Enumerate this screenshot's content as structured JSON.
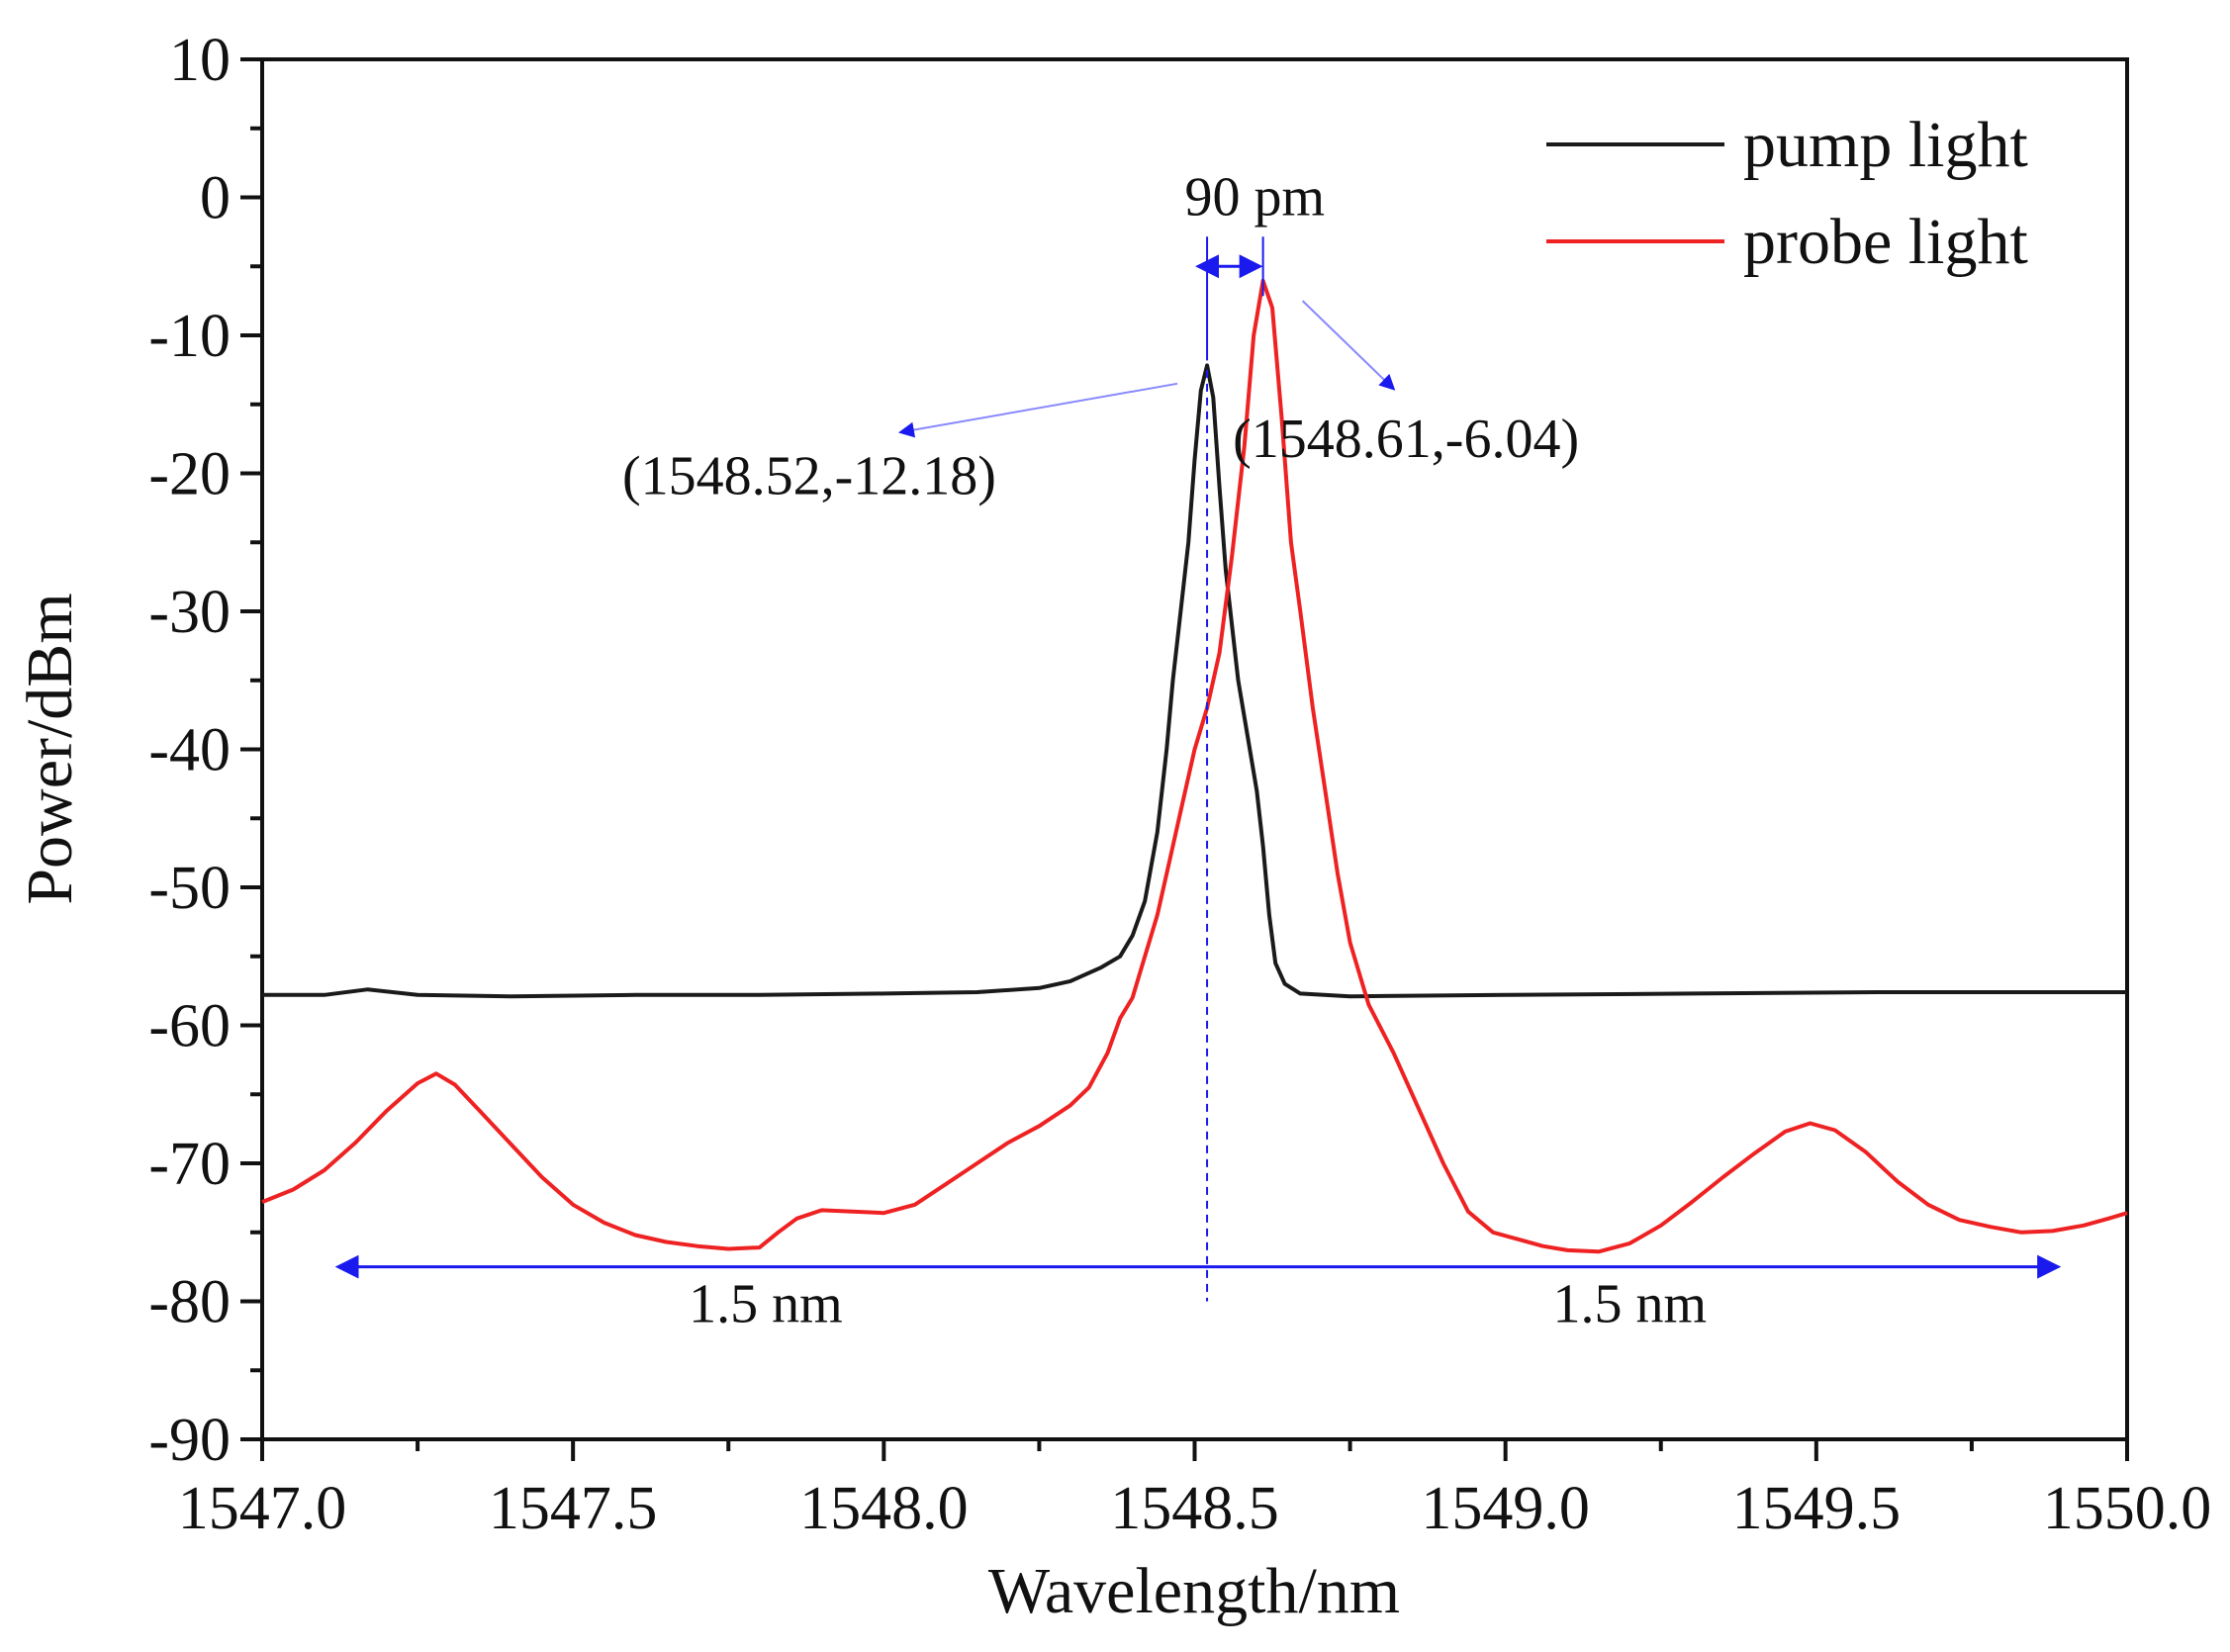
{
  "chart_data": {
    "type": "line",
    "title": "",
    "xlabel": "Wavelength/nm",
    "ylabel": "Power/dBm",
    "xlim": [
      1547.0,
      1550.0
    ],
    "ylim": [
      -90,
      10
    ],
    "xticks": [
      1547.0,
      1547.5,
      1548.0,
      1548.5,
      1549.0,
      1549.5,
      1550.0
    ],
    "xtick_labels": [
      "1547.0",
      "1547.5",
      "1548.0",
      "1548.5",
      "1549.0",
      "1549.5",
      "1550.0"
    ],
    "yticks": [
      10,
      0,
      -10,
      -20,
      -30,
      -40,
      -50,
      -60,
      -70,
      -80,
      -90
    ],
    "ytick_labels": [
      "10",
      "0",
      "-10",
      "-20",
      "-30",
      "-40",
      "-50",
      "-60",
      "-70",
      "-80",
      "-90"
    ],
    "grid": false,
    "legend_position": "top-right",
    "series": [
      {
        "name": "pump light",
        "color": "#1a1a1a",
        "points": [
          [
            1547.0,
            -57.8
          ],
          [
            1547.1,
            -57.8
          ],
          [
            1547.17,
            -57.4
          ],
          [
            1547.25,
            -57.8
          ],
          [
            1547.4,
            -57.9
          ],
          [
            1547.6,
            -57.8
          ],
          [
            1547.8,
            -57.8
          ],
          [
            1548.0,
            -57.7
          ],
          [
            1548.15,
            -57.6
          ],
          [
            1548.25,
            -57.3
          ],
          [
            1548.3,
            -56.8
          ],
          [
            1548.35,
            -55.8
          ],
          [
            1548.38,
            -55.0
          ],
          [
            1548.4,
            -53.5
          ],
          [
            1548.42,
            -51.0
          ],
          [
            1548.44,
            -46.0
          ],
          [
            1548.455,
            -40.0
          ],
          [
            1548.465,
            -35.0
          ],
          [
            1548.475,
            -31.0
          ],
          [
            1548.49,
            -25.0
          ],
          [
            1548.5,
            -19.0
          ],
          [
            1548.51,
            -14.0
          ],
          [
            1548.52,
            -12.18
          ],
          [
            1548.53,
            -14.5
          ],
          [
            1548.54,
            -21.0
          ],
          [
            1548.55,
            -27.0
          ],
          [
            1548.56,
            -31.0
          ],
          [
            1548.57,
            -35.0
          ],
          [
            1548.585,
            -39.0
          ],
          [
            1548.6,
            -43.0
          ],
          [
            1548.61,
            -47.0
          ],
          [
            1548.62,
            -52.0
          ],
          [
            1548.63,
            -55.5
          ],
          [
            1548.645,
            -57.0
          ],
          [
            1548.67,
            -57.7
          ],
          [
            1548.75,
            -57.9
          ],
          [
            1549.0,
            -57.8
          ],
          [
            1549.3,
            -57.7
          ],
          [
            1549.6,
            -57.6
          ],
          [
            1550.0,
            -57.6
          ]
        ]
      },
      {
        "name": "probe light",
        "color": "#ee2222",
        "points": [
          [
            1547.0,
            -72.8
          ],
          [
            1547.05,
            -71.9
          ],
          [
            1547.1,
            -70.5
          ],
          [
            1547.15,
            -68.5
          ],
          [
            1547.2,
            -66.2
          ],
          [
            1547.25,
            -64.2
          ],
          [
            1547.28,
            -63.5
          ],
          [
            1547.31,
            -64.3
          ],
          [
            1547.35,
            -66.2
          ],
          [
            1547.4,
            -68.6
          ],
          [
            1547.45,
            -71.0
          ],
          [
            1547.5,
            -73.0
          ],
          [
            1547.55,
            -74.3
          ],
          [
            1547.6,
            -75.2
          ],
          [
            1547.65,
            -75.7
          ],
          [
            1547.7,
            -76.0
          ],
          [
            1547.75,
            -76.2
          ],
          [
            1547.8,
            -76.1
          ],
          [
            1547.83,
            -75.0
          ],
          [
            1547.86,
            -74.0
          ],
          [
            1547.9,
            -73.4
          ],
          [
            1547.95,
            -73.5
          ],
          [
            1548.0,
            -73.6
          ],
          [
            1548.05,
            -73.0
          ],
          [
            1548.1,
            -71.5
          ],
          [
            1548.15,
            -70.0
          ],
          [
            1548.2,
            -68.5
          ],
          [
            1548.25,
            -67.3
          ],
          [
            1548.3,
            -65.8
          ],
          [
            1548.33,
            -64.5
          ],
          [
            1548.36,
            -62.0
          ],
          [
            1548.38,
            -59.5
          ],
          [
            1548.4,
            -58.0
          ],
          [
            1548.42,
            -55.0
          ],
          [
            1548.44,
            -52.0
          ],
          [
            1548.46,
            -48.0
          ],
          [
            1548.48,
            -44.0
          ],
          [
            1548.5,
            -40.0
          ],
          [
            1548.52,
            -37.0
          ],
          [
            1548.54,
            -33.0
          ],
          [
            1548.56,
            -26.0
          ],
          [
            1548.58,
            -18.0
          ],
          [
            1548.595,
            -10.0
          ],
          [
            1548.61,
            -6.04
          ],
          [
            1548.625,
            -8.0
          ],
          [
            1548.64,
            -16.0
          ],
          [
            1548.655,
            -25.0
          ],
          [
            1548.67,
            -30.0
          ],
          [
            1548.69,
            -37.0
          ],
          [
            1548.71,
            -43.0
          ],
          [
            1548.73,
            -49.0
          ],
          [
            1548.75,
            -54.0
          ],
          [
            1548.78,
            -58.5
          ],
          [
            1548.82,
            -62.0
          ],
          [
            1548.86,
            -66.0
          ],
          [
            1548.9,
            -70.0
          ],
          [
            1548.94,
            -73.5
          ],
          [
            1548.98,
            -75.0
          ],
          [
            1549.02,
            -75.5
          ],
          [
            1549.06,
            -76.0
          ],
          [
            1549.1,
            -76.3
          ],
          [
            1549.15,
            -76.4
          ],
          [
            1549.2,
            -75.8
          ],
          [
            1549.25,
            -74.5
          ],
          [
            1549.3,
            -72.8
          ],
          [
            1549.35,
            -71.0
          ],
          [
            1549.4,
            -69.3
          ],
          [
            1549.45,
            -67.7
          ],
          [
            1549.49,
            -67.1
          ],
          [
            1549.53,
            -67.6
          ],
          [
            1549.58,
            -69.2
          ],
          [
            1549.63,
            -71.3
          ],
          [
            1549.68,
            -73.0
          ],
          [
            1549.73,
            -74.1
          ],
          [
            1549.78,
            -74.6
          ],
          [
            1549.83,
            -75.0
          ],
          [
            1549.88,
            -74.9
          ],
          [
            1549.93,
            -74.5
          ],
          [
            1549.97,
            -74.0
          ],
          [
            1550.0,
            -73.6
          ]
        ]
      }
    ],
    "annotations": {
      "pump_peak_label": "(1548.52,-12.18)",
      "pump_peak": [
        1548.52,
        -12.18
      ],
      "pump_label_anchor": [
        1547.95,
        -17.0
      ],
      "probe_peak_label": "(1548.61,-6.04)",
      "probe_peak": [
        1548.61,
        -6.04
      ],
      "probe_label_anchor": [
        1548.85,
        -13.8
      ],
      "separation_label": "90 pm",
      "separation_range": [
        1548.52,
        1548.61
      ],
      "separation_y": -5.0,
      "span_label_left": "1.5 nm",
      "span_label_right": "1.5 nm",
      "span_range": [
        1547.13,
        1549.9
      ],
      "span_y": -77.5,
      "center_line_x": 1548.52,
      "center_line_range": [
        -12.5,
        -80.0
      ],
      "annotation_color": "#1a1aee",
      "leader_color": "#8888ff"
    }
  }
}
